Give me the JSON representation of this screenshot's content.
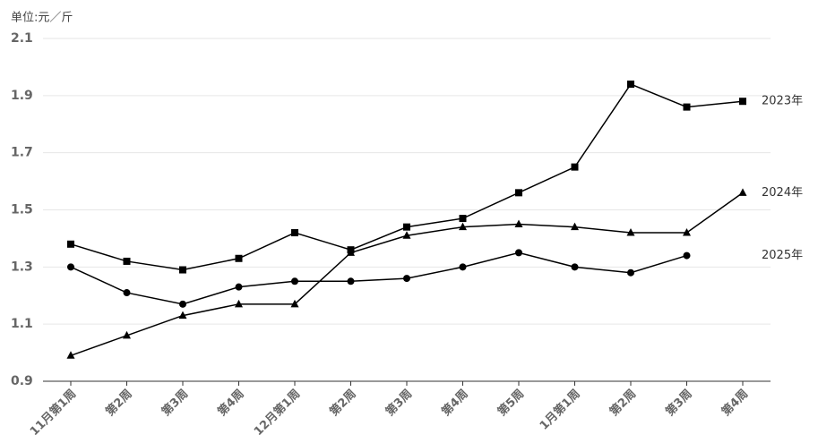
{
  "chart_data": {
    "type": "line",
    "ylabel": "单位:元／斤",
    "categories": [
      "11月第1周",
      "第2周",
      "第3周",
      "第4周",
      "12月第1周",
      "第2周",
      "第3周",
      "第4周",
      "第5周",
      "1月第1周",
      "第2周",
      "第3周",
      "第4周"
    ],
    "series": [
      {
        "name": "2023年",
        "color": "#000000",
        "marker": "square",
        "values": [
          1.38,
          1.32,
          1.29,
          1.33,
          1.42,
          1.36,
          1.44,
          1.47,
          1.56,
          1.65,
          1.94,
          1.86,
          1.88
        ]
      },
      {
        "name": "2024年",
        "color": "#000000",
        "marker": "triangle",
        "values": [
          0.99,
          1.06,
          1.13,
          1.17,
          1.17,
          1.35,
          1.41,
          1.44,
          1.45,
          1.44,
          1.42,
          1.42,
          1.56
        ]
      },
      {
        "name": "2025年",
        "color": "#000000",
        "marker": "circle",
        "values": [
          1.3,
          1.21,
          1.17,
          1.23,
          1.25,
          1.25,
          1.26,
          1.3,
          1.35,
          1.3,
          1.28,
          1.34,
          null
        ]
      }
    ],
    "ylim": [
      0.9,
      2.1
    ],
    "yticks": [
      0.9,
      1.1,
      1.3,
      1.5,
      1.7,
      1.9,
      2.1
    ],
    "grid": true
  }
}
